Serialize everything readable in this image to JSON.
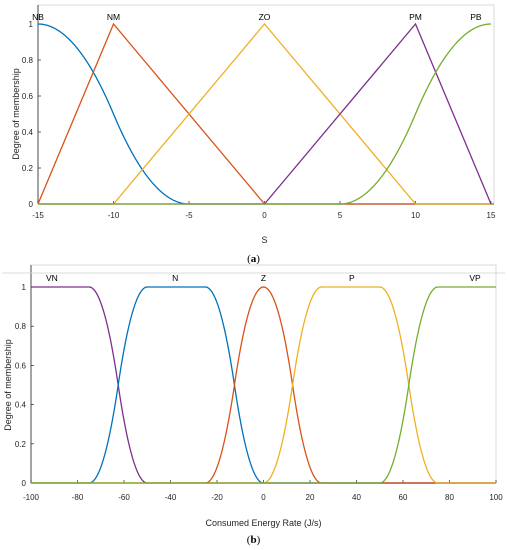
{
  "chart_data": [
    {
      "type": "line",
      "caption_open": "(",
      "caption_letter": "a",
      "caption_close": ")",
      "xlabel": "S",
      "ylabel": "Degree of membership",
      "xlim": [
        -15,
        15
      ],
      "ylim": [
        0,
        1
      ],
      "x_ticks": [
        -15,
        -10,
        -5,
        0,
        5,
        10,
        15
      ],
      "y_ticks": [
        0,
        0.2,
        0.4,
        0.6,
        0.8,
        1
      ],
      "grid": false,
      "series": [
        {
          "name": "NB",
          "shape": "z-shaped",
          "params": [
            -15,
            -5
          ],
          "label_x": -15,
          "color": "#0072bd"
        },
        {
          "name": "NM",
          "shape": "triangle",
          "params": [
            -15,
            -10,
            0
          ],
          "label_x": -10,
          "color": "#d95319"
        },
        {
          "name": "ZO",
          "shape": "triangle",
          "params": [
            -10,
            0,
            10
          ],
          "label_x": 0,
          "color": "#edb120"
        },
        {
          "name": "PM",
          "shape": "triangle",
          "params": [
            0,
            10,
            15
          ],
          "label_x": 10,
          "color": "#7e2f8e"
        },
        {
          "name": "PB",
          "shape": "s-shaped",
          "params": [
            5,
            15
          ],
          "label_x": 14,
          "color": "#77ac30"
        }
      ]
    },
    {
      "type": "line",
      "caption_open": "(",
      "caption_letter": "b",
      "caption_close": ")",
      "xlabel": "Consumed Energy Rate (J/s)",
      "ylabel": "Degree of membership",
      "xlim": [
        -100,
        100
      ],
      "ylim": [
        0,
        1
      ],
      "x_ticks": [
        -100,
        -80,
        -60,
        -40,
        -20,
        0,
        20,
        40,
        60,
        80,
        100
      ],
      "y_ticks": [
        0,
        0.2,
        0.4,
        0.6,
        0.8,
        1
      ],
      "grid": false,
      "series": [
        {
          "name": "VN",
          "shape": "z-shaped",
          "params": [
            -75,
            -50
          ],
          "label_x": -91,
          "color": "#7e2f8e"
        },
        {
          "name": "N",
          "shape": "pi-shaped",
          "params": [
            -75,
            -50,
            -25,
            0
          ],
          "label_x": -38,
          "color": "#0072bd"
        },
        {
          "name": "Z",
          "shape": "pi-shaped",
          "params": [
            -25,
            0,
            0,
            25
          ],
          "label_x": 0,
          "color": "#d95319"
        },
        {
          "name": "P",
          "shape": "pi-shaped",
          "params": [
            0,
            25,
            50,
            75
          ],
          "label_x": 38,
          "color": "#edb120"
        },
        {
          "name": "VP",
          "shape": "s-shaped",
          "params": [
            50,
            75
          ],
          "label_x": 91,
          "color": "#77ac30"
        }
      ]
    }
  ]
}
